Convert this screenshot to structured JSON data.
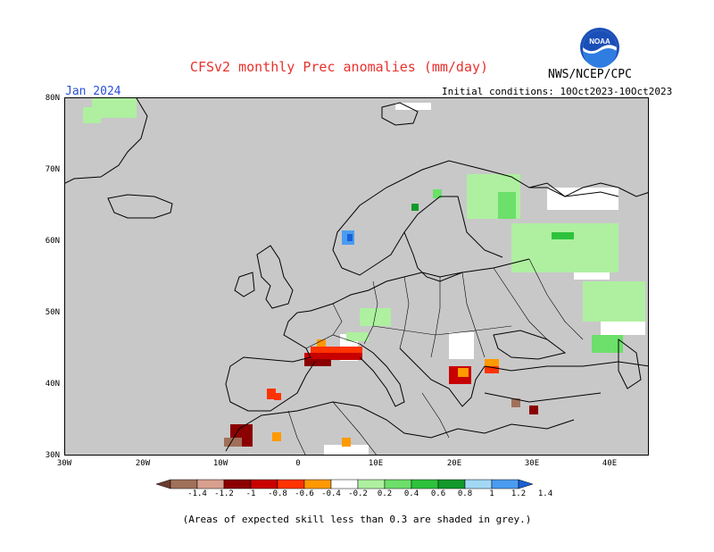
{
  "header": {
    "title": "CFSv2 monthly Prec anomalies (mm/day)",
    "agency": "NWS/NCEP/CPC",
    "logo_text": "NOAA",
    "month": "Jan 2024",
    "initial_conditions": "Initial conditions: 10Oct2023-10Oct2023"
  },
  "axes": {
    "lat_labels": [
      "80N",
      "70N",
      "60N",
      "50N",
      "40N",
      "30N"
    ],
    "lon_labels": [
      "30W",
      "20W",
      "10W",
      "0",
      "10E",
      "20E",
      "30E",
      "40E"
    ]
  },
  "legend": {
    "labels": [
      "-1.4",
      "-1.2",
      "-1",
      "-0.8",
      "-0.6",
      "-0.4",
      "-0.2",
      "0.2",
      "0.4",
      "0.6",
      "0.8",
      "1",
      "1.2",
      "1.4"
    ],
    "colors": [
      "#6b3d2e",
      "#a0705a",
      "#d9a090",
      "#8b0000",
      "#c80000",
      "#ff3300",
      "#ff9900",
      "#ffffff",
      "#aef0a0",
      "#6ce06a",
      "#2ec23c",
      "#119a2a",
      "#a3d8f5",
      "#4a9cf0",
      "#1a5fd6"
    ]
  },
  "footnote": "(Areas of expected skill less than 0.3 are shaded in grey.)",
  "map_colors": {
    "ocean_grey": "#c8c8c8",
    "coast": "#000000"
  }
}
